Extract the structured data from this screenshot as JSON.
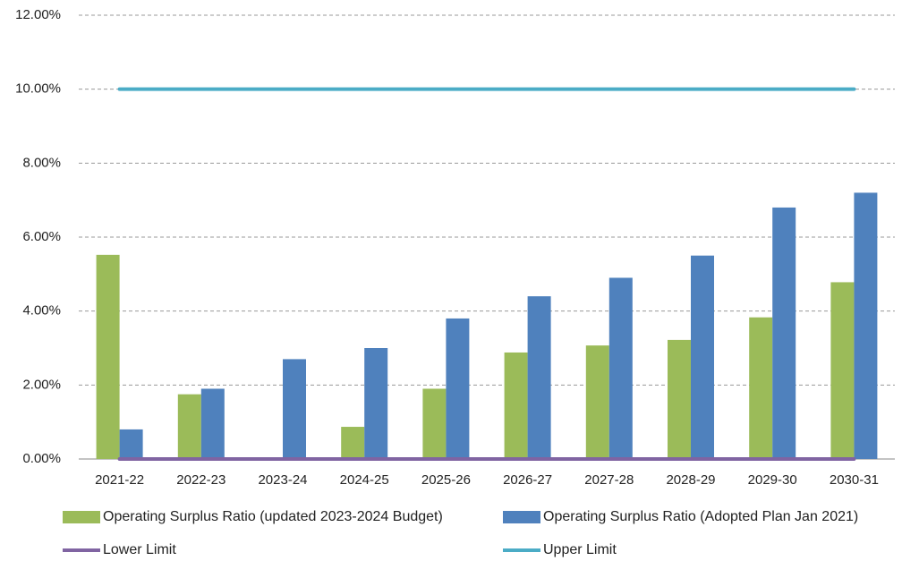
{
  "chart_data": {
    "type": "bar",
    "categories": [
      "2021-22",
      "2022-23",
      "2023-24",
      "2024-25",
      "2025-26",
      "2026-27",
      "2027-28",
      "2028-29",
      "2029-30",
      "2030-31"
    ],
    "series": [
      {
        "name": "Operating Surplus Ratio (updated 2023-2024 Budget)",
        "color": "#9bbb59",
        "type": "bar",
        "values": [
          5.52,
          1.75,
          0,
          0.87,
          1.9,
          2.88,
          3.07,
          3.22,
          3.83,
          4.78
        ]
      },
      {
        "name": "Operating Surplus Ratio (Adopted Plan Jan 2021)",
        "color": "#4f81bd",
        "type": "bar",
        "values": [
          0.8,
          1.9,
          2.7,
          3.0,
          3.8,
          4.4,
          4.9,
          5.5,
          6.8,
          7.2
        ]
      },
      {
        "name": "Lower Limit",
        "color": "#8064a2",
        "type": "line",
        "values": [
          0,
          0,
          0,
          0,
          0,
          0,
          0,
          0,
          0,
          0
        ]
      },
      {
        "name": "Upper Limit",
        "color": "#4bacc6",
        "type": "line",
        "values": [
          10,
          10,
          10,
          10,
          10,
          10,
          10,
          10,
          10,
          10
        ]
      }
    ],
    "ylim": [
      0,
      12
    ],
    "yticks": [
      {
        "value": 0,
        "label": "0.00%"
      },
      {
        "value": 2,
        "label": "2.00%"
      },
      {
        "value": 4,
        "label": "4.00%"
      },
      {
        "value": 6,
        "label": "6.00%"
      },
      {
        "value": 8,
        "label": "8.00%"
      },
      {
        "value": 10,
        "label": "10.00%"
      },
      {
        "value": 12,
        "label": "12.00%"
      }
    ],
    "grid": true
  }
}
